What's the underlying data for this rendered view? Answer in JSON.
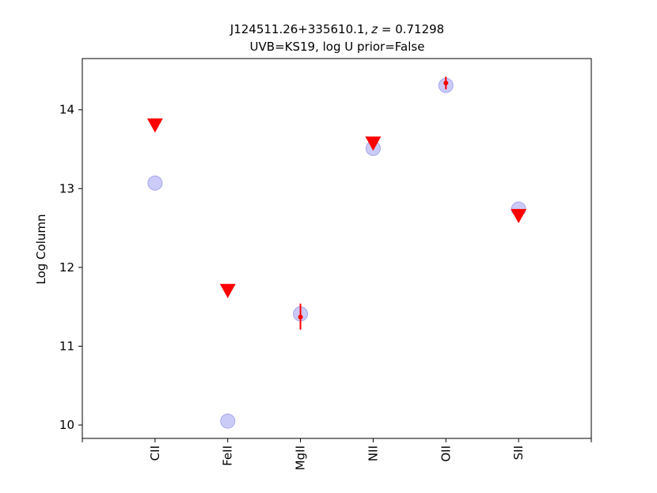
{
  "chart_data": {
    "type": "scatter",
    "title": "J124511.26+335610.1, z = 0.71298",
    "subtitle": "UVB=KS19, log U prior=False",
    "title_parts": {
      "object": "J124511.26+335610.1,",
      "z_symbol": "z",
      "z_value": " = 0.71298"
    },
    "xlabel": "",
    "ylabel": "Log Column",
    "categories": [
      "CII",
      "FeII",
      "MgII",
      "NII",
      "OII",
      "SII"
    ],
    "xlim": [
      -1,
      6
    ],
    "ylim": [
      9.83,
      14.65
    ],
    "yticks": [
      10,
      11,
      12,
      13,
      14
    ],
    "grid": false,
    "series": [
      {
        "marker": "circle",
        "color": "#a0a0f0",
        "opacity": 0.55,
        "values": [
          13.07,
          10.05,
          11.41,
          13.51,
          14.31,
          12.74
        ]
      },
      {
        "marker": "triangle-down",
        "color": "#ff0000",
        "values": [
          {
            "category": "CII",
            "y": 13.8
          },
          {
            "category": "FeII",
            "y": 11.7
          },
          {
            "category": "NII",
            "y": 13.57
          },
          {
            "category": "SII",
            "y": 12.65
          }
        ]
      },
      {
        "marker": "errorbar",
        "color": "#ff0000",
        "values": [
          {
            "category": "MgII",
            "y": 11.37,
            "ylow": 11.21,
            "yhigh": 11.54
          },
          {
            "category": "OII",
            "y": 14.34,
            "ylow": 14.26,
            "yhigh": 14.42
          }
        ]
      }
    ]
  }
}
